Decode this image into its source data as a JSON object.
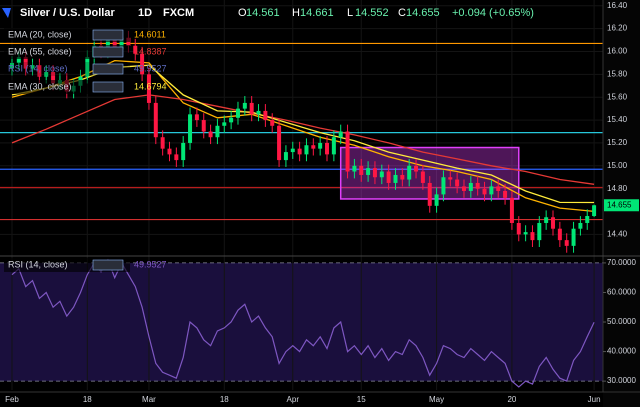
{
  "chart_data": {
    "type": "candlestick",
    "title": "Silver / U.S. Dollar",
    "interval": "1D",
    "source": "FXCM",
    "ohlc_labels": [
      "O",
      "H",
      "L",
      "C"
    ],
    "change": "+0.094 (+0.65%)",
    "up_color": "#00e676",
    "down_color": "#ff1744",
    "open": [
      15.85,
      15.9,
      15.95,
      15.85,
      15.88,
      15.78,
      15.82,
      15.72,
      15.75,
      15.65,
      15.7,
      15.78,
      15.95,
      16.05,
      16.0,
      16.1,
      16.02,
      16.12,
      16.05,
      15.98,
      15.8,
      15.55,
      15.25,
      15.15,
      15.1,
      15.05,
      15.2,
      15.45,
      15.4,
      15.3,
      15.25,
      15.35,
      15.38,
      15.42,
      15.5,
      15.55,
      15.45,
      15.48,
      15.4,
      15.35,
      15.05,
      15.12,
      15.15,
      15.1,
      15.18,
      15.15,
      15.2,
      15.1,
      15.25,
      15.3,
      14.95,
      15.0,
      14.92,
      14.98,
      14.9,
      14.95,
      14.85,
      14.92,
      14.88,
      15.0,
      14.95,
      14.85,
      14.65,
      14.75,
      14.9,
      14.88,
      14.82,
      14.78,
      14.85,
      14.8,
      14.75,
      14.82,
      14.78,
      14.72,
      14.5,
      14.4,
      14.42,
      14.35,
      14.5,
      14.55,
      14.45,
      14.35,
      14.3,
      14.45,
      14.5,
      14.561
    ],
    "high": [
      15.96,
      16.01,
      16.01,
      15.94,
      15.94,
      15.88,
      15.88,
      15.81,
      15.81,
      15.76,
      15.84,
      16.01,
      16.11,
      16.11,
      16.16,
      16.16,
      16.18,
      16.18,
      16.11,
      16.04,
      15.86,
      15.61,
      15.31,
      15.21,
      15.16,
      15.26,
      15.51,
      15.51,
      15.46,
      15.36,
      15.41,
      15.44,
      15.48,
      15.56,
      15.61,
      15.61,
      15.54,
      15.54,
      15.46,
      15.41,
      15.18,
      15.21,
      15.21,
      15.24,
      15.24,
      15.26,
      15.26,
      15.31,
      15.36,
      15.36,
      15.06,
      15.06,
      15.04,
      15.04,
      15.01,
      15.01,
      14.98,
      14.98,
      15.06,
      15.06,
      15.01,
      14.91,
      14.81,
      14.96,
      14.96,
      14.94,
      14.88,
      14.91,
      14.91,
      14.86,
      14.88,
      14.88,
      14.84,
      14.78,
      14.56,
      14.48,
      14.48,
      14.56,
      14.61,
      14.61,
      14.51,
      14.41,
      14.51,
      14.56,
      14.62,
      14.661
    ],
    "low": [
      15.79,
      15.84,
      15.79,
      15.79,
      15.72,
      15.72,
      15.66,
      15.66,
      15.59,
      15.59,
      15.64,
      15.72,
      15.89,
      15.94,
      15.94,
      15.96,
      15.96,
      15.99,
      15.92,
      15.74,
      15.49,
      15.19,
      15.09,
      15.04,
      14.99,
      14.99,
      15.14,
      15.34,
      15.24,
      15.19,
      15.19,
      15.29,
      15.32,
      15.36,
      15.44,
      15.39,
      15.39,
      15.34,
      15.29,
      14.99,
      14.99,
      15.06,
      15.04,
      15.04,
      15.09,
      15.09,
      15.04,
      15.04,
      15.19,
      14.89,
      14.89,
      14.86,
      14.86,
      14.84,
      14.84,
      14.79,
      14.79,
      14.82,
      14.82,
      14.89,
      14.79,
      14.59,
      14.59,
      14.69,
      14.82,
      14.76,
      14.72,
      14.72,
      14.74,
      14.69,
      14.69,
      14.72,
      14.66,
      14.44,
      14.34,
      14.34,
      14.29,
      14.29,
      14.44,
      14.39,
      14.29,
      14.24,
      14.24,
      14.39,
      14.44,
      14.552
    ],
    "close": [
      15.9,
      15.95,
      15.85,
      15.88,
      15.78,
      15.82,
      15.72,
      15.75,
      15.65,
      15.7,
      15.78,
      15.95,
      16.05,
      16.0,
      16.1,
      16.02,
      16.12,
      16.05,
      15.98,
      15.8,
      15.55,
      15.25,
      15.15,
      15.1,
      15.05,
      15.2,
      15.45,
      15.4,
      15.3,
      15.25,
      15.35,
      15.38,
      15.42,
      15.5,
      15.55,
      15.45,
      15.48,
      15.4,
      15.35,
      15.05,
      15.12,
      15.15,
      15.1,
      15.18,
      15.15,
      15.2,
      15.1,
      15.25,
      15.3,
      14.95,
      15.0,
      14.92,
      14.98,
      14.9,
      14.95,
      14.85,
      14.92,
      14.88,
      15.0,
      14.95,
      14.85,
      14.65,
      14.75,
      14.9,
      14.88,
      14.82,
      14.78,
      14.85,
      14.8,
      14.75,
      14.82,
      14.78,
      14.72,
      14.5,
      14.4,
      14.42,
      14.35,
      14.5,
      14.55,
      14.45,
      14.35,
      14.3,
      14.45,
      14.5,
      14.561,
      14.655
    ],
    "ema_x": [
      0,
      5,
      10,
      15,
      20,
      25,
      30,
      35,
      40,
      45,
      50,
      55,
      60,
      65,
      70,
      75,
      80,
      85
    ],
    "ema": [
      {
        "name": "EMA (20, close)",
        "color": "#ffb300",
        "values": [
          15.6,
          15.68,
          15.78,
          15.92,
          15.9,
          15.55,
          15.42,
          15.45,
          15.35,
          15.25,
          15.18,
          15.08,
          15.0,
          14.95,
          14.88,
          14.72,
          14.63,
          14.6011
        ]
      },
      {
        "name": "EMA (55, close)",
        "color": "#e53935",
        "values": [
          15.2,
          15.32,
          15.45,
          15.58,
          15.62,
          15.58,
          15.52,
          15.46,
          15.4,
          15.33,
          15.27,
          15.2,
          15.12,
          15.06,
          15.0,
          14.95,
          14.88,
          14.8387
        ]
      },
      {
        "name": "EMA (30, close)",
        "color": "#ffeb3b",
        "values": [
          15.62,
          15.68,
          15.75,
          15.86,
          15.88,
          15.62,
          15.48,
          15.47,
          15.38,
          15.29,
          15.22,
          15.12,
          15.05,
          14.98,
          14.92,
          14.78,
          14.68,
          14.6794
        ]
      }
    ],
    "hlines": [
      {
        "value": 16.07,
        "color": "#ff9800"
      },
      {
        "value": 15.29,
        "color": "#26c6da"
      },
      {
        "value": 14.97,
        "color": "#2962ff"
      },
      {
        "value": 14.81,
        "color": "#b71c1c"
      },
      {
        "value": 14.53,
        "color": "#d32f2f"
      }
    ],
    "box": {
      "x": [
        48,
        74
      ],
      "y": [
        14.71,
        15.16
      ],
      "color": "#e040fb"
    },
    "ylim": [
      14.22,
      16.45
    ],
    "yticks": [
      {
        "value": 16.4,
        "label": "16.40"
      },
      {
        "value": 16.2,
        "label": "16.20"
      },
      {
        "value": 16,
        "label": "16.00"
      },
      {
        "value": 15.8,
        "label": "15.80"
      },
      {
        "value": 15.6,
        "label": "15.60"
      },
      {
        "value": 15.4,
        "label": "15.40"
      },
      {
        "value": 15.2,
        "label": "15.20"
      },
      {
        "value": 15,
        "label": "15.00"
      },
      {
        "value": 14.8,
        "label": "14.80"
      },
      {
        "value": 14.4,
        "label": "14.40"
      }
    ],
    "xlim": [
      -1.75,
      86.3
    ],
    "xticks": [
      {
        "value": 0,
        "label": "Feb"
      },
      {
        "value": 11,
        "label": "18"
      },
      {
        "value": 20,
        "label": "Mar"
      },
      {
        "value": 31,
        "label": "18"
      },
      {
        "value": 41,
        "label": "Apr"
      },
      {
        "value": 51,
        "label": "15"
      },
      {
        "value": 62,
        "label": "May"
      },
      {
        "value": 73,
        "label": "20"
      },
      {
        "value": 85,
        "label": "Jun"
      }
    ],
    "grid": true,
    "rsi": {
      "name": "RSI (14, close)",
      "color": "#7e57c2",
      "values": [
        66,
        68,
        62,
        64,
        58,
        60,
        55,
        57,
        52,
        55,
        60,
        66,
        70,
        67,
        71,
        65,
        70,
        66,
        62,
        55,
        45,
        36,
        33,
        32,
        31,
        38,
        50,
        48,
        44,
        42,
        47,
        48,
        50,
        54,
        56,
        50,
        52,
        48,
        45,
        36,
        40,
        42,
        40,
        44,
        42,
        45,
        41,
        48,
        50,
        40,
        42,
        39,
        42,
        38,
        41,
        37,
        40,
        39,
        44,
        42,
        38,
        32,
        36,
        42,
        41,
        39,
        38,
        41,
        39,
        37,
        40,
        38,
        36,
        30,
        28,
        30,
        29,
        35,
        38,
        34,
        31,
        30,
        37,
        40,
        45,
        49.9527
      ],
      "ylim": [
        27,
        72
      ],
      "band": [
        30,
        70
      ],
      "yticks": [
        {
          "value": 70,
          "label": "70.0000"
        },
        {
          "value": 60,
          "label": "60.0000"
        },
        {
          "value": 50,
          "label": "50.0000"
        },
        {
          "value": 40,
          "label": "40.0000"
        },
        {
          "value": 30,
          "label": "30.0000"
        }
      ]
    }
  }
}
